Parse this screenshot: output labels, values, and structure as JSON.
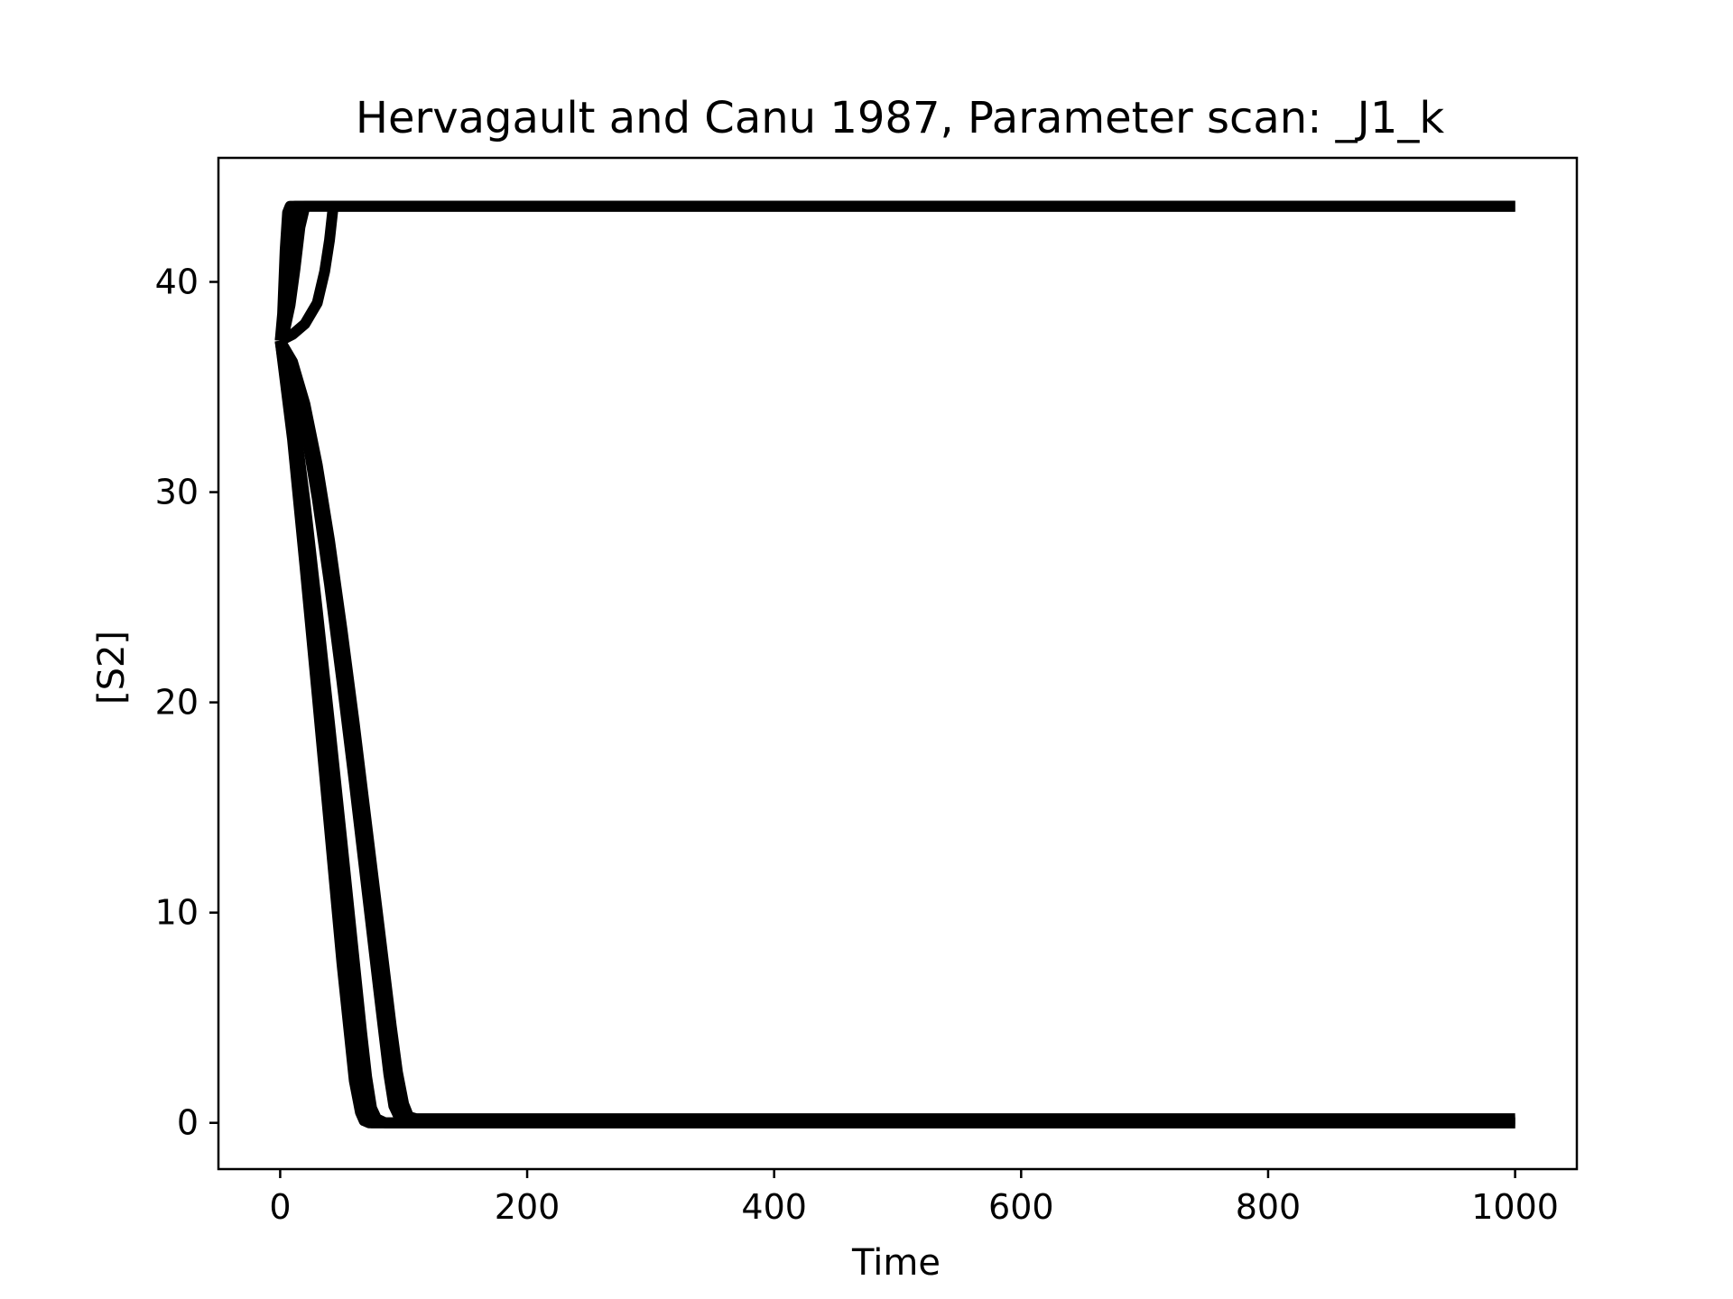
{
  "colors": {
    "background": "#ffffff",
    "line": "#000000",
    "axes": "#000000"
  },
  "chart_data": {
    "type": "line",
    "title": "Hervagault and Canu 1987, Parameter scan: _J1_k",
    "xlabel": "Time",
    "ylabel": "[S2]",
    "xlim": [
      -50,
      1050
    ],
    "ylim": [
      -2.2,
      45.9
    ],
    "xticks": [
      0,
      200,
      400,
      600,
      800,
      1000
    ],
    "yticks": [
      0,
      10,
      30,
      40
    ],
    "yticks_all": [
      0,
      10,
      20,
      30,
      40
    ],
    "grid": false,
    "legend": "none",
    "series": [
      {
        "x": [
          0,
          2,
          4,
          6,
          8,
          1000
        ],
        "values": [
          37.2,
          38.5,
          41.5,
          43.3,
          43.6,
          43.6
        ]
      },
      {
        "x": [
          0,
          3,
          6,
          9,
          12,
          1000
        ],
        "values": [
          37.2,
          38.2,
          40.5,
          42.8,
          43.6,
          43.6
        ]
      },
      {
        "x": [
          0,
          4,
          8,
          12,
          16,
          20,
          1000
        ],
        "values": [
          37.2,
          37.8,
          38.9,
          40.6,
          42.6,
          43.6,
          43.6
        ]
      },
      {
        "x": [
          0,
          10,
          20,
          30,
          36,
          40,
          43,
          1000
        ],
        "values": [
          37.2,
          37.5,
          38.0,
          39.0,
          40.5,
          42.0,
          43.6,
          43.6
        ]
      },
      {
        "x": [
          0,
          10,
          20,
          30,
          40,
          50,
          60,
          65,
          68,
          72,
          80,
          1000
        ],
        "values": [
          37.2,
          32.5,
          26.5,
          20.3,
          14.0,
          7.6,
          2.0,
          0.5,
          0.1,
          0.0,
          0.0,
          0.0
        ]
      },
      {
        "x": [
          0,
          10,
          20,
          30,
          40,
          50,
          60,
          66,
          70,
          74,
          80,
          1000
        ],
        "values": [
          37.2,
          33.0,
          27.4,
          21.5,
          15.5,
          9.4,
          3.4,
          0.8,
          0.2,
          0.0,
          0.0,
          0.0
        ]
      },
      {
        "x": [
          0,
          10,
          20,
          30,
          40,
          50,
          60,
          66,
          70,
          74,
          78,
          85,
          1000
        ],
        "values": [
          37.2,
          34.2,
          29.6,
          24.4,
          19.0,
          13.4,
          7.7,
          4.3,
          2.2,
          0.7,
          0.2,
          0.0,
          0.0
        ]
      },
      {
        "x": [
          0,
          10,
          20,
          30,
          40,
          50,
          60,
          70,
          80,
          88,
          92,
          96,
          100,
          1000
        ],
        "values": [
          37.2,
          35.8,
          33.2,
          29.7,
          25.6,
          21.0,
          16.2,
          11.2,
          6.2,
          2.3,
          0.8,
          0.3,
          0.1,
          0.1
        ]
      },
      {
        "x": [
          0,
          10,
          20,
          30,
          40,
          50,
          60,
          70,
          80,
          90,
          95,
          100,
          104,
          110,
          1000
        ],
        "values": [
          37.2,
          36.2,
          34.2,
          31.3,
          27.7,
          23.5,
          19.0,
          14.2,
          9.4,
          4.6,
          2.4,
          0.9,
          0.3,
          0.2,
          0.2
        ]
      }
    ]
  }
}
